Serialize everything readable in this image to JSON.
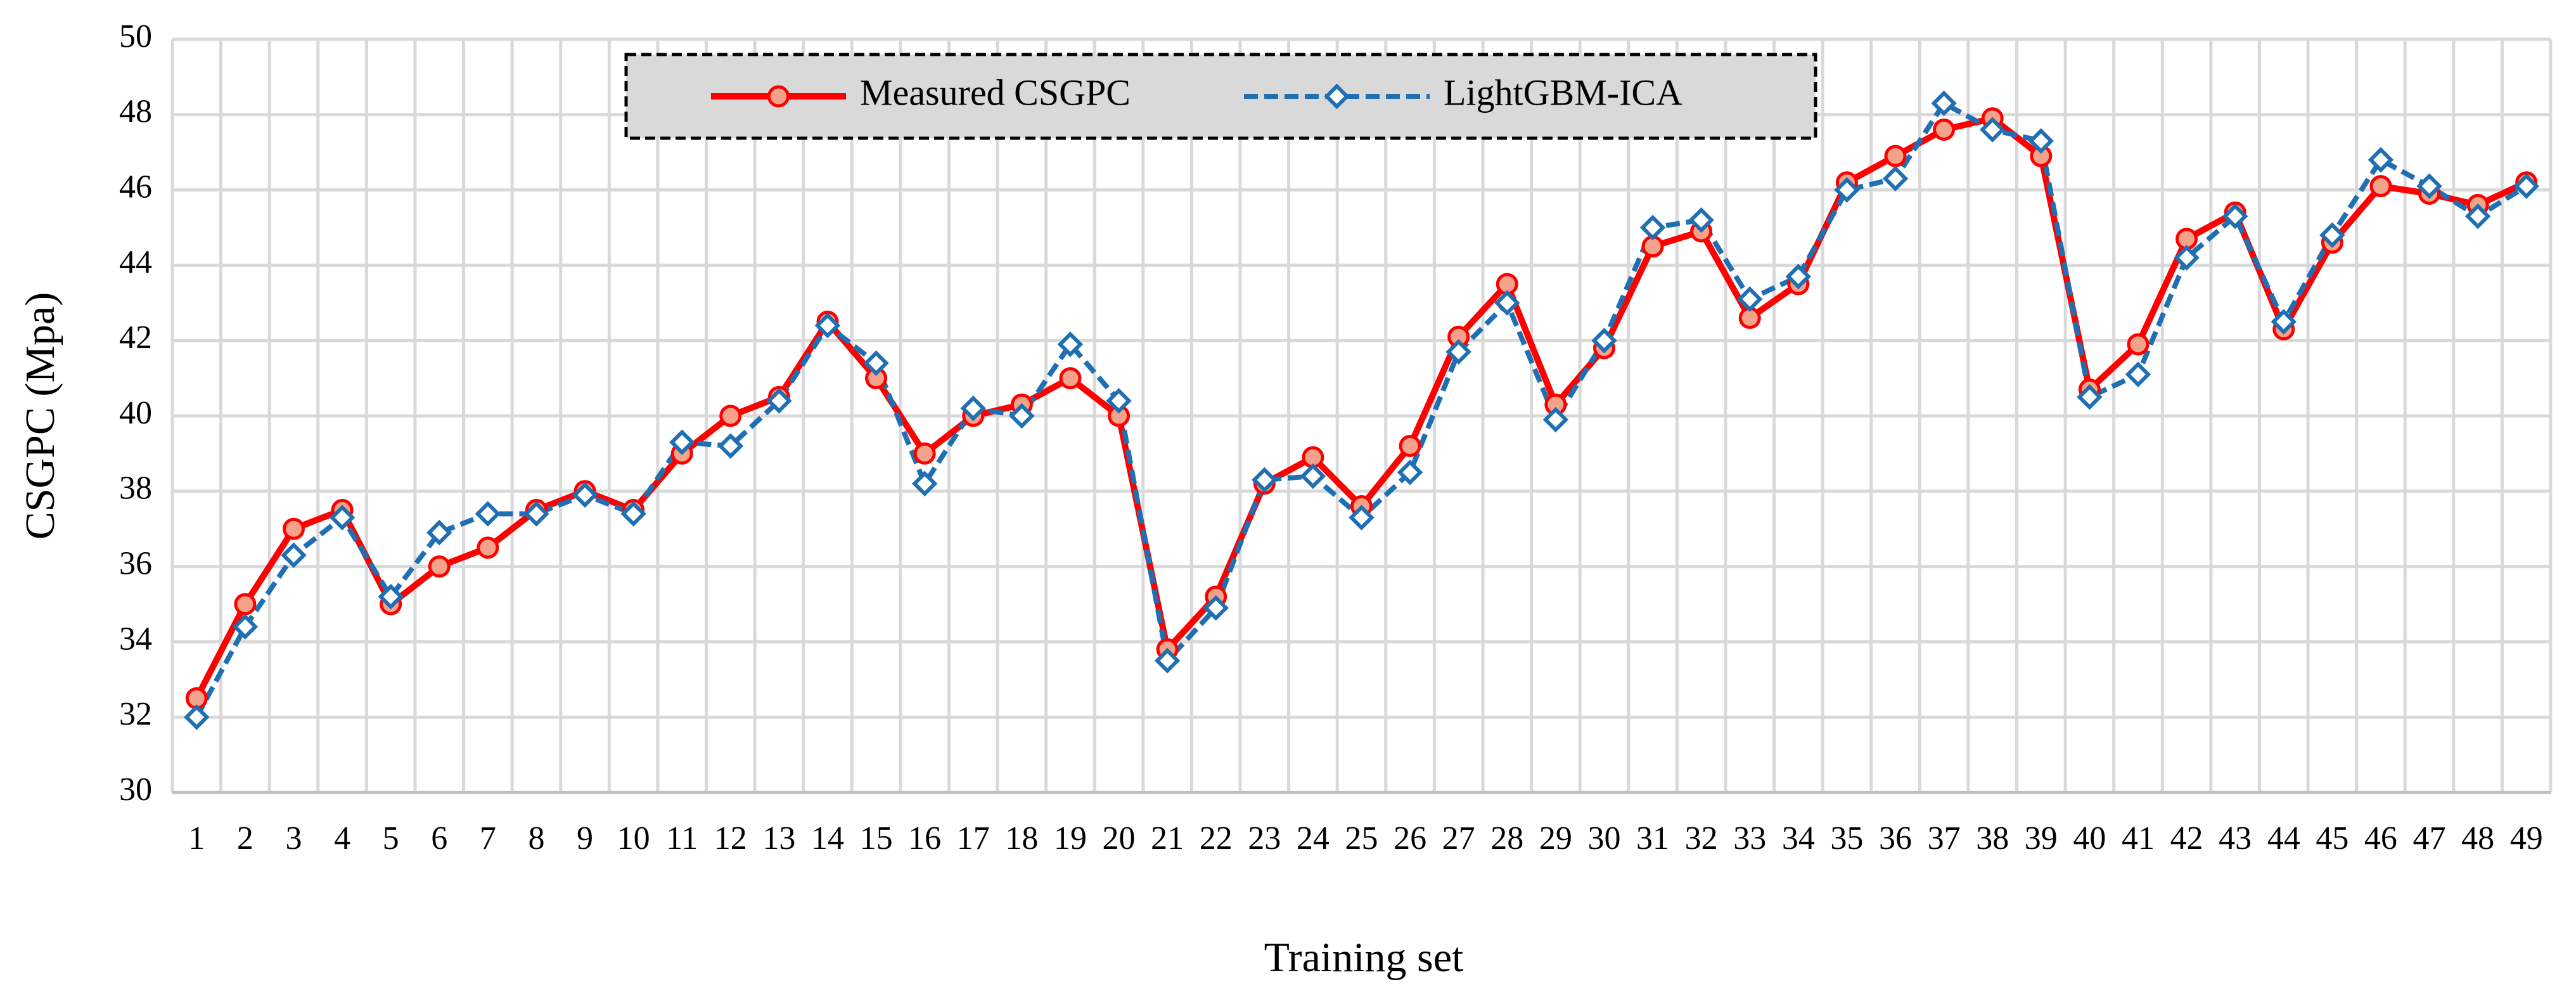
{
  "chart_data": {
    "type": "line",
    "x_label": "Training set",
    "y_label": "CSGPC (Mpa)",
    "categories": [
      1,
      2,
      3,
      4,
      5,
      6,
      7,
      8,
      9,
      10,
      11,
      12,
      13,
      14,
      15,
      16,
      17,
      18,
      19,
      20,
      21,
      22,
      23,
      24,
      25,
      26,
      27,
      28,
      29,
      30,
      31,
      32,
      33,
      34,
      35,
      36,
      37,
      38,
      39,
      40,
      41,
      42,
      43,
      44,
      45,
      46,
      47,
      48,
      49
    ],
    "series": [
      {
        "name": "Measured CSGPC",
        "color": "#ff0000",
        "marker": "circle",
        "marker_fill": "#f4a38a",
        "dashed": false,
        "values": [
          32.5,
          35,
          37,
          37.5,
          35,
          36,
          36.5,
          37.5,
          38,
          37.5,
          39,
          40,
          40.5,
          42.5,
          41,
          39,
          40,
          40.3,
          41,
          40,
          33.8,
          35.2,
          38.2,
          38.9,
          37.6,
          39.2,
          42.1,
          43.5,
          40.3,
          41.8,
          44.5,
          44.9,
          42.6,
          43.5,
          46.2,
          46.9,
          47.6,
          47.9,
          46.9,
          40.7,
          41.9,
          44.7,
          45.4,
          42.3,
          44.6,
          46.1,
          45.9,
          45.6,
          46.2
        ]
      },
      {
        "name": "LightGBM-ICA",
        "color": "#1f6fb2",
        "marker": "diamond",
        "marker_fill": "#ffffff",
        "dashed": true,
        "values": [
          32,
          34.4,
          36.3,
          37.3,
          35.2,
          36.9,
          37.4,
          37.4,
          37.9,
          37.4,
          39.3,
          39.2,
          40.4,
          42.4,
          41.4,
          38.2,
          40.2,
          40,
          41.9,
          40.4,
          33.5,
          34.9,
          38.3,
          38.4,
          37.3,
          38.5,
          41.7,
          43,
          39.9,
          42,
          45,
          45.2,
          43.1,
          43.7,
          46,
          46.3,
          48.3,
          47.6,
          47.3,
          40.5,
          41.1,
          44.2,
          45.3,
          42.5,
          44.8,
          46.8,
          46.1,
          45.3,
          46.1
        ]
      }
    ],
    "ylim": [
      30,
      50
    ],
    "yticks": [
      30,
      32,
      34,
      36,
      38,
      40,
      42,
      44,
      46,
      48,
      50
    ],
    "grid": true,
    "legend": "top"
  }
}
